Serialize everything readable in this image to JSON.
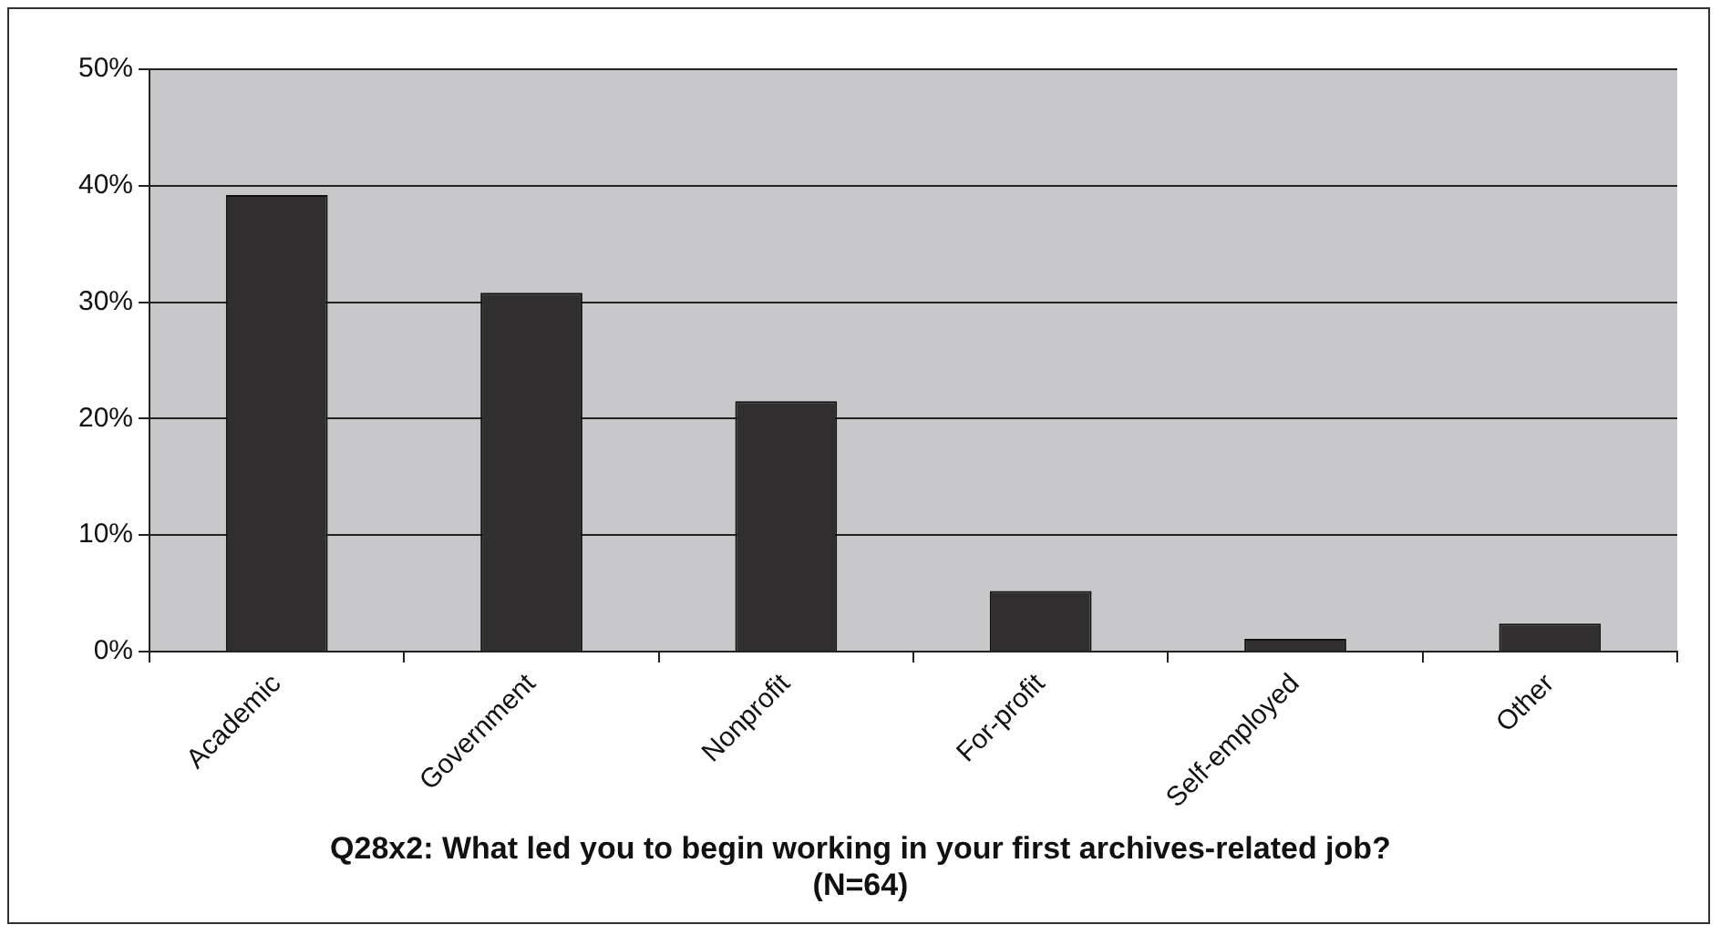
{
  "chart_data": {
    "type": "bar",
    "title": "Q28x2: What led you to begin working in your first archives-related job? (N=64)",
    "categories": [
      "Academic",
      "Government",
      "Nonprofit",
      "For-profit",
      "Self-employed",
      "Other"
    ],
    "values": [
      39.2,
      30.8,
      21.5,
      5.2,
      1.1,
      2.4
    ],
    "color": "#302e2f",
    "ylim": [
      0,
      50
    ],
    "yticks": [
      {
        "value": 0,
        "label": "0%"
      },
      {
        "value": 10,
        "label": "10%"
      },
      {
        "value": 20,
        "label": "20%"
      },
      {
        "value": 30,
        "label": "30%"
      },
      {
        "value": 40,
        "label": "40%"
      },
      {
        "value": 50,
        "label": "50%"
      }
    ],
    "grid": "y"
  }
}
